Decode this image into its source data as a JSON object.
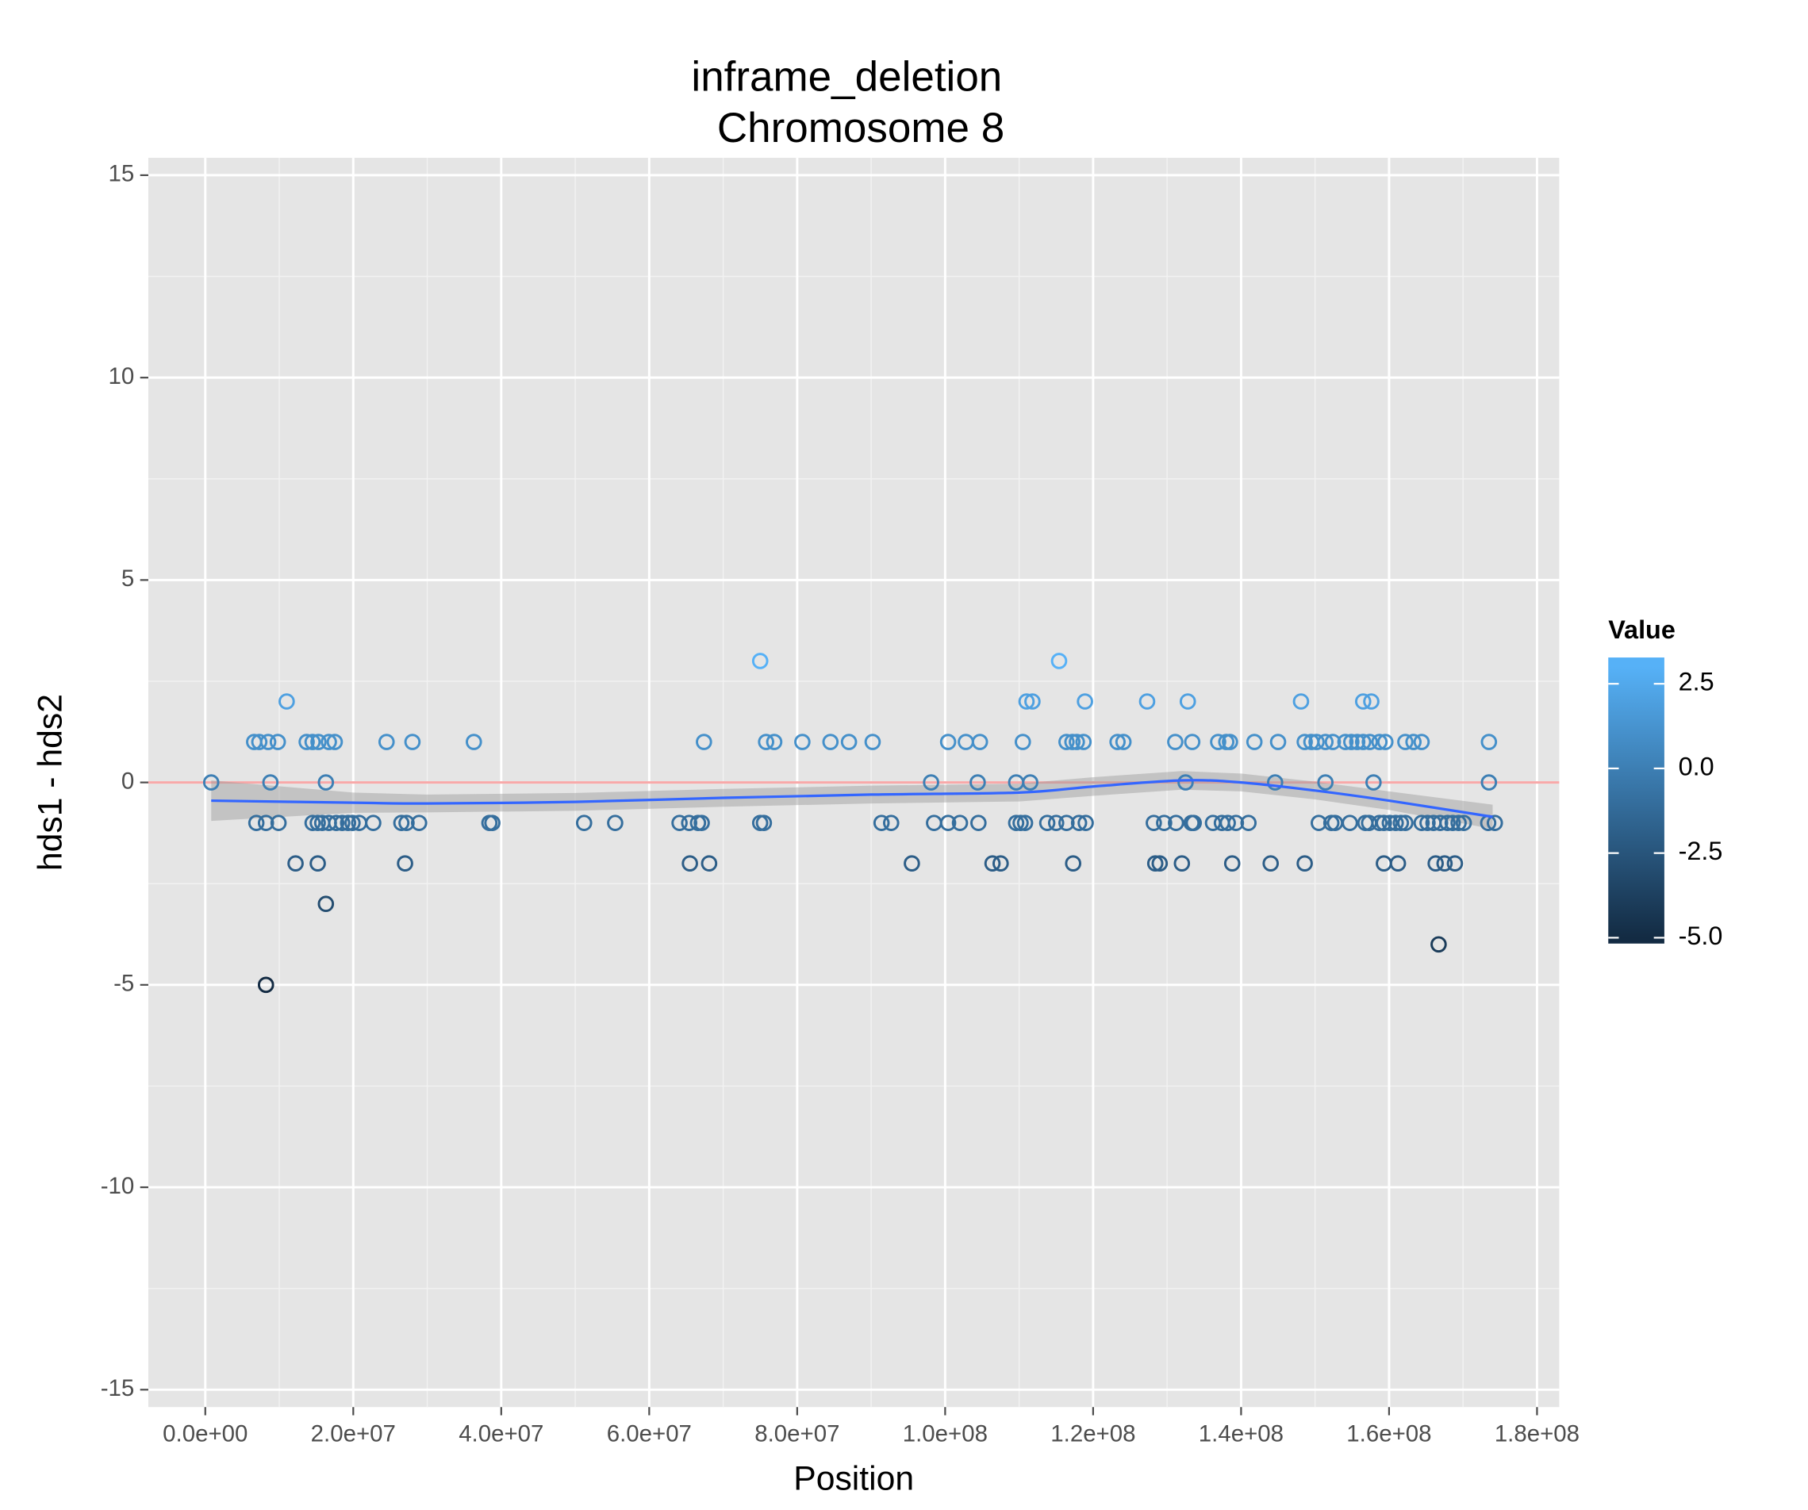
{
  "chart_data": {
    "type": "scatter",
    "title": "inframe_deletion",
    "subtitle": "Chromosome 8",
    "x_label": "Position",
    "y_label": "hds1 - hds2",
    "xlim": [
      -7700000,
      183000000
    ],
    "ylim": [
      -15.43,
      15.43
    ],
    "xticks": [
      {
        "value": 0,
        "label": "0.0e+00"
      },
      {
        "value": 20000000,
        "label": "2.0e+07"
      },
      {
        "value": 40000000,
        "label": "4.0e+07"
      },
      {
        "value": 60000000,
        "label": "6.0e+07"
      },
      {
        "value": 80000000,
        "label": "8.0e+07"
      },
      {
        "value": 100000000,
        "label": "1.0e+08"
      },
      {
        "value": 120000000,
        "label": "1.2e+08"
      },
      {
        "value": 140000000,
        "label": "1.4e+08"
      },
      {
        "value": 160000000,
        "label": "1.6e+08"
      },
      {
        "value": 180000000,
        "label": "1.8e+08"
      }
    ],
    "yticks": [
      -15,
      -10,
      -5,
      0,
      5,
      10,
      15
    ],
    "grid": true,
    "x": [
      800000,
      6600000,
      7300000,
      8500000,
      9800000,
      8800000,
      6900000,
      8200000,
      9900000,
      11000000,
      12200000,
      13700000,
      14500000,
      15300000,
      16700000,
      17500000,
      16300000,
      14500000,
      15200000,
      15800000,
      16700000,
      17700000,
      18500000,
      19300000,
      19900000,
      20800000,
      22700000,
      15200000,
      16300000,
      8200000,
      24500000,
      26500000,
      27200000,
      28900000,
      27000000,
      28000000,
      36300000,
      38400000,
      38800000,
      51200000,
      55400000,
      64100000,
      65400000,
      66600000,
      67100000,
      65500000,
      68100000,
      67400000,
      75000000,
      75000000,
      75500000,
      75800000,
      76900000,
      80700000,
      84500000,
      87000000,
      90200000,
      91400000,
      92700000,
      95500000,
      98100000,
      98500000,
      100400000,
      102000000,
      100400000,
      102800000,
      104700000,
      104400000,
      104500000,
      106400000,
      107500000,
      109600000,
      110200000,
      110800000,
      109600000,
      111500000,
      110500000,
      111000000,
      111800000,
      113800000,
      115000000,
      115400000,
      116400000,
      117200000,
      117800000,
      118700000,
      116400000,
      118100000,
      119000000,
      117300000,
      118900000,
      123300000,
      124100000,
      127300000,
      128200000,
      129600000,
      131200000,
      128400000,
      129000000,
      131100000,
      132000000,
      132800000,
      132500000,
      133300000,
      133600000,
      133400000,
      136900000,
      138000000,
      138500000,
      136200000,
      137400000,
      138200000,
      139300000,
      141000000,
      138800000,
      141800000,
      144000000,
      144600000,
      145000000,
      148100000,
      148600000,
      149500000,
      150200000,
      151400000,
      152400000,
      148600000,
      150500000,
      152200000,
      152700000,
      154700000,
      151400000,
      154100000,
      154900000,
      155700000,
      156500000,
      157400000,
      156500000,
      157600000,
      156800000,
      157300000,
      157900000,
      158700000,
      159500000,
      158700000,
      159300000,
      160100000,
      160900000,
      161600000,
      162200000,
      159300000,
      161200000,
      162200000,
      163300000,
      164400000,
      164400000,
      165200000,
      166000000,
      166900000,
      167900000,
      168600000,
      169400000,
      170100000,
      166300000,
      167500000,
      168900000,
      166700000,
      173500000,
      173500000,
      173400000,
      174300000
    ],
    "values": [
      0,
      1,
      1,
      1,
      1,
      0,
      -1,
      -1,
      -1,
      2,
      -2,
      1,
      1,
      1,
      1,
      1,
      0,
      -1,
      -1,
      -1,
      -1,
      -1,
      -1,
      -1,
      -1,
      -1,
      -1,
      -2,
      -3,
      -5,
      1,
      -1,
      -1,
      -1,
      -2,
      1,
      1,
      -1,
      -1,
      -1,
      -1,
      -1,
      -1,
      -1,
      -1,
      -2,
      -2,
      1,
      3,
      -1,
      -1,
      1,
      1,
      1,
      1,
      1,
      1,
      -1,
      -1,
      -2,
      0,
      -1,
      -1,
      -1,
      1,
      1,
      1,
      0,
      -1,
      -2,
      -2,
      -1,
      -1,
      -1,
      0,
      0,
      1,
      2,
      2,
      -1,
      -1,
      3,
      1,
      1,
      1,
      1,
      -1,
      -1,
      -1,
      -2,
      2,
      1,
      1,
      2,
      -1,
      -1,
      -1,
      -2,
      -2,
      1,
      -2,
      2,
      0,
      -1,
      -1,
      1,
      1,
      1,
      1,
      -1,
      -1,
      -1,
      -1,
      -1,
      -2,
      1,
      -2,
      0,
      1,
      2,
      1,
      1,
      1,
      1,
      1,
      -2,
      -1,
      -1,
      -1,
      -1,
      0,
      1,
      1,
      1,
      1,
      1,
      2,
      2,
      -1,
      -1,
      0,
      1,
      1,
      -1,
      -1,
      -1,
      -1,
      -1,
      -1,
      -2,
      -2,
      1,
      1,
      1,
      -1,
      -1,
      -1,
      -1,
      -1,
      -1,
      -1,
      -1,
      -2,
      -2,
      -2,
      -4,
      1,
      0,
      -1,
      -1
    ],
    "color_scale": {
      "title": "Value",
      "lim": [
        -5,
        3
      ],
      "colors": [
        "#132B43",
        "#56B1F7"
      ],
      "ticks": [
        {
          "value": 2.5,
          "label": "2.5"
        },
        {
          "value": 0,
          "label": "0.0"
        },
        {
          "value": -2.5,
          "label": "-2.5"
        },
        {
          "value": -5,
          "label": "-5.0"
        }
      ]
    },
    "hline": {
      "value": 0,
      "color": "#F8A8A8"
    },
    "smooth": {
      "color": "#3366FF",
      "band_color": "#999999",
      "x": [
        800000,
        20000000,
        30000000,
        50000000,
        70000000,
        90000000,
        110000000,
        120000000,
        132000000,
        140000000,
        150000000,
        160000000,
        174000000
      ],
      "values": [
        -0.45,
        -0.5,
        -0.52,
        -0.48,
        -0.38,
        -0.3,
        -0.25,
        -0.1,
        0.05,
        0,
        -0.2,
        -0.45,
        -0.85
      ],
      "lower": [
        -0.95,
        -0.75,
        -0.74,
        -0.7,
        -0.6,
        -0.52,
        -0.47,
        -0.33,
        -0.18,
        -0.22,
        -0.42,
        -0.68,
        -1.15
      ],
      "upper": [
        0.05,
        -0.25,
        -0.3,
        -0.26,
        -0.16,
        -0.08,
        -0.03,
        0.13,
        0.28,
        0.22,
        0.02,
        -0.22,
        -0.55
      ]
    }
  }
}
